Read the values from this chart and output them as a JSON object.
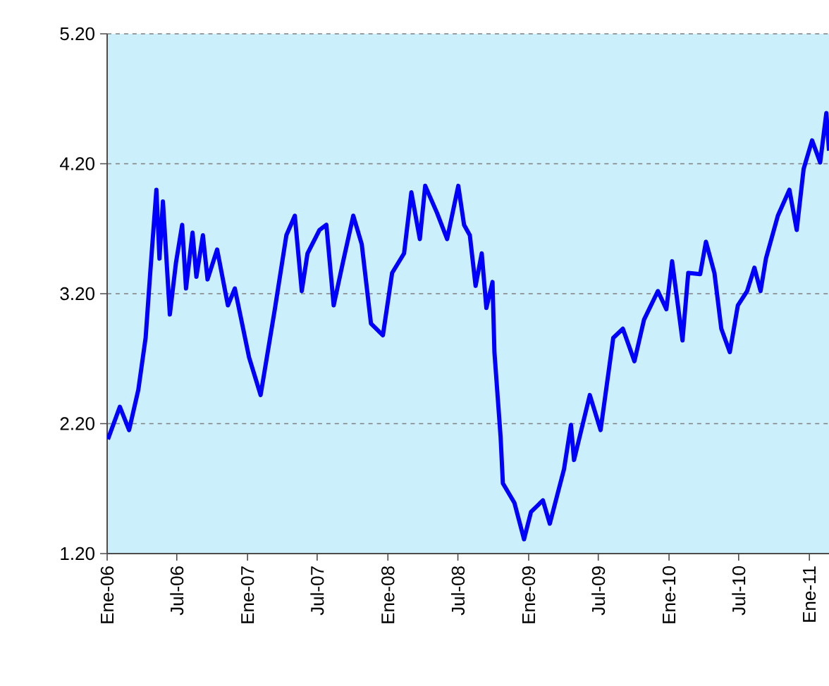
{
  "chart_data": {
    "type": "line",
    "grid": "y",
    "marker": "none",
    "line_style": "solid",
    "xlim": [
      "2006-01-01",
      "2011-02-21"
    ],
    "xticks": [
      {
        "value": "2006-01-01",
        "label": "Ene-06"
      },
      {
        "value": "2006-07-01",
        "label": "Jul-06"
      },
      {
        "value": "2007-01-01",
        "label": "Ene-07"
      },
      {
        "value": "2007-07-01",
        "label": "Jul-07"
      },
      {
        "value": "2008-01-01",
        "label": "Ene-08"
      },
      {
        "value": "2008-07-01",
        "label": "Jul-08"
      },
      {
        "value": "2009-01-01",
        "label": "Ene-09"
      },
      {
        "value": "2009-07-01",
        "label": "Jul-09"
      },
      {
        "value": "2010-01-01",
        "label": "Ene-10"
      },
      {
        "value": "2010-07-01",
        "label": "Jul-10"
      },
      {
        "value": "2011-01-01",
        "label": "Ene-11"
      }
    ],
    "ylim": [
      1.2,
      5.2
    ],
    "yticks": [
      {
        "value": 1.2,
        "label": "1.20"
      },
      {
        "value": 2.2,
        "label": "2.20"
      },
      {
        "value": 3.2,
        "label": "3.20"
      },
      {
        "value": 4.2,
        "label": "4.20"
      },
      {
        "value": 5.2,
        "label": "5.20"
      }
    ],
    "series": [
      {
        "color": "#0000ff",
        "x": [
          "2006-01-03",
          "2006-02-03",
          "2006-02-27",
          "2006-03-23",
          "2006-04-11",
          "2006-04-23",
          "2006-05-09",
          "2006-05-17",
          "2006-05-26",
          "2006-06-13",
          "2006-06-29",
          "2006-07-15",
          "2006-07-25",
          "2006-08-11",
          "2006-08-21",
          "2006-09-07",
          "2006-09-19",
          "2006-10-14",
          "2006-11-11",
          "2006-11-29",
          "2007-01-05",
          "2007-02-04",
          "2007-03-13",
          "2007-04-12",
          "2007-05-04",
          "2007-05-22",
          "2007-06-06",
          "2007-07-07",
          "2007-07-25",
          "2007-08-13",
          "2007-09-06",
          "2007-10-03",
          "2007-10-25",
          "2007-11-18",
          "2007-12-19",
          "2008-01-12",
          "2008-02-12",
          "2008-03-02",
          "2008-03-24",
          "2008-04-07",
          "2008-05-08",
          "2008-06-03",
          "2008-07-02",
          "2008-07-17",
          "2008-08-01",
          "2008-08-16",
          "2008-09-01",
          "2008-09-13",
          "2008-09-29",
          "2008-10-04",
          "2008-10-20",
          "2008-10-26",
          "2008-11-25",
          "2008-12-20",
          "2009-01-07",
          "2009-02-07",
          "2009-02-25",
          "2009-04-03",
          "2009-04-21",
          "2009-04-29",
          "2009-06-09",
          "2009-07-07",
          "2009-08-09",
          "2009-09-03",
          "2009-10-03",
          "2009-10-28",
          "2009-12-03",
          "2009-12-25",
          "2010-01-09",
          "2010-02-05",
          "2010-02-20",
          "2010-03-23",
          "2010-04-07",
          "2010-04-29",
          "2010-05-17",
          "2010-06-08",
          "2010-06-29",
          "2010-07-23",
          "2010-08-11",
          "2010-08-27",
          "2010-09-10",
          "2010-10-11",
          "2010-11-10",
          "2010-11-29",
          "2010-12-17",
          "2011-01-08",
          "2011-01-29",
          "2011-02-14",
          "2011-02-21"
        ],
        "values": [
          2.08,
          2.33,
          2.15,
          2.46,
          2.86,
          3.36,
          4.0,
          3.47,
          3.91,
          3.04,
          3.44,
          3.73,
          3.24,
          3.67,
          3.33,
          3.65,
          3.31,
          3.54,
          3.11,
          3.24,
          2.71,
          2.42,
          3.08,
          3.65,
          3.8,
          3.22,
          3.51,
          3.69,
          3.73,
          3.11,
          3.44,
          3.8,
          3.58,
          2.97,
          2.88,
          3.36,
          3.51,
          3.98,
          3.62,
          4.03,
          3.82,
          3.62,
          4.03,
          3.73,
          3.65,
          3.26,
          3.51,
          3.09,
          3.29,
          2.75,
          2.1,
          1.74,
          1.59,
          1.31,
          1.52,
          1.61,
          1.43,
          1.85,
          2.19,
          1.92,
          2.42,
          2.15,
          2.86,
          2.93,
          2.68,
          3.0,
          3.22,
          3.08,
          3.45,
          2.84,
          3.36,
          3.35,
          3.6,
          3.36,
          2.93,
          2.75,
          3.11,
          3.22,
          3.4,
          3.22,
          3.47,
          3.8,
          4.0,
          3.69,
          4.16,
          4.38,
          4.21,
          4.59,
          4.3
        ]
      }
    ]
  }
}
